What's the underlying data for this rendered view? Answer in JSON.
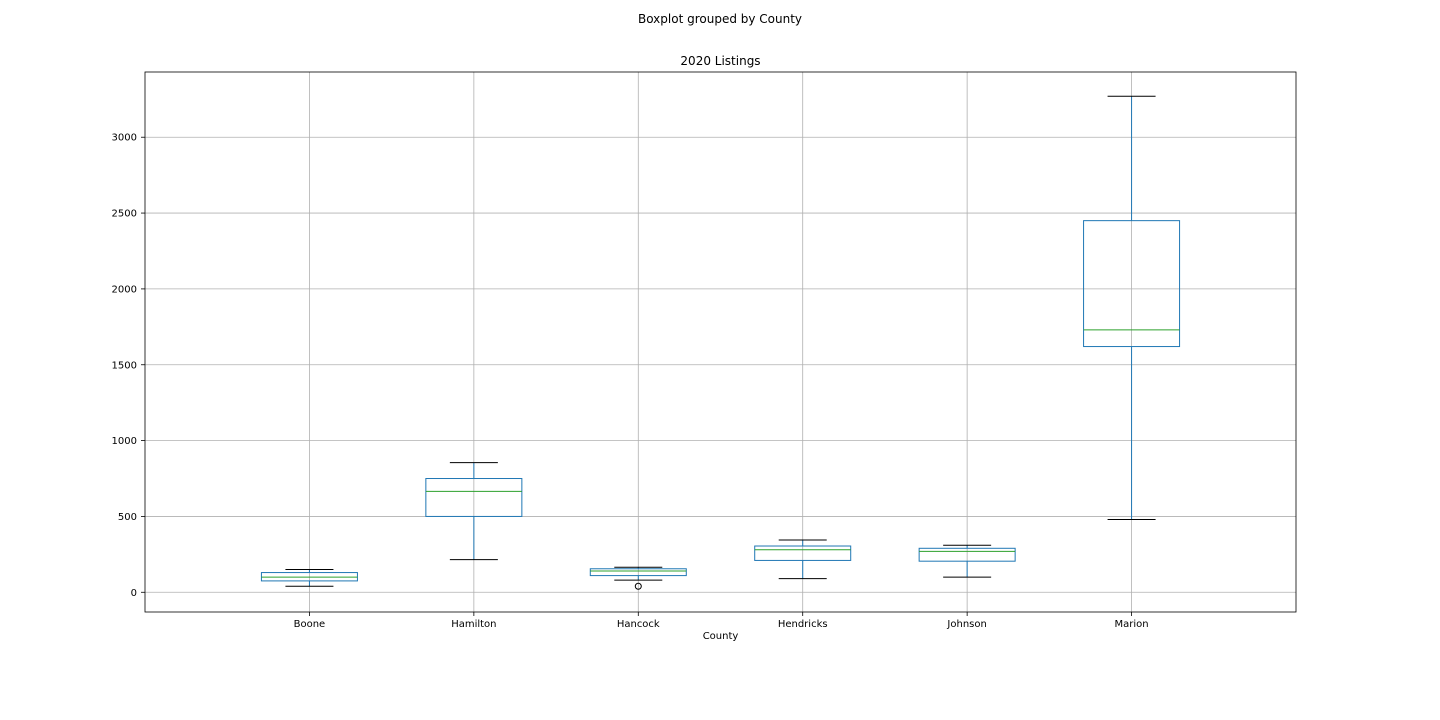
{
  "chart_data": {
    "type": "boxplot",
    "suptitle": "Boxplot grouped by County",
    "title": "2020 Listings",
    "xlabel": "County",
    "ylabel": "",
    "ylim": [
      -130,
      3430
    ],
    "yticks": [
      0,
      500,
      1000,
      1500,
      2000,
      2500,
      3000
    ],
    "grid": true,
    "categories": [
      "Boone",
      "Hamilton",
      "Hancock",
      "Hendricks",
      "Johnson",
      "Marion"
    ],
    "boxes": [
      {
        "name": "Boone",
        "whisker_low": 40,
        "q1": 75,
        "median": 100,
        "q3": 130,
        "whisker_high": 150,
        "outliers": []
      },
      {
        "name": "Hamilton",
        "whisker_low": 215,
        "q1": 500,
        "median": 665,
        "q3": 750,
        "whisker_high": 855,
        "outliers": []
      },
      {
        "name": "Hancock",
        "whisker_low": 80,
        "q1": 110,
        "median": 140,
        "q3": 155,
        "whisker_high": 165,
        "outliers": [
          40
        ]
      },
      {
        "name": "Hendricks",
        "whisker_low": 90,
        "q1": 210,
        "median": 280,
        "q3": 305,
        "whisker_high": 345,
        "outliers": []
      },
      {
        "name": "Johnson",
        "whisker_low": 100,
        "q1": 205,
        "median": 270,
        "q3": 290,
        "whisker_high": 310,
        "outliers": []
      },
      {
        "name": "Marion",
        "whisker_low": 480,
        "q1": 1620,
        "median": 1730,
        "q3": 2450,
        "whisker_high": 3270,
        "outliers": []
      }
    ],
    "colors": {
      "box": "#1f77b4",
      "median": "#2ca02c",
      "whisker_cap": "#000000",
      "grid": "#b0b0b0"
    }
  }
}
